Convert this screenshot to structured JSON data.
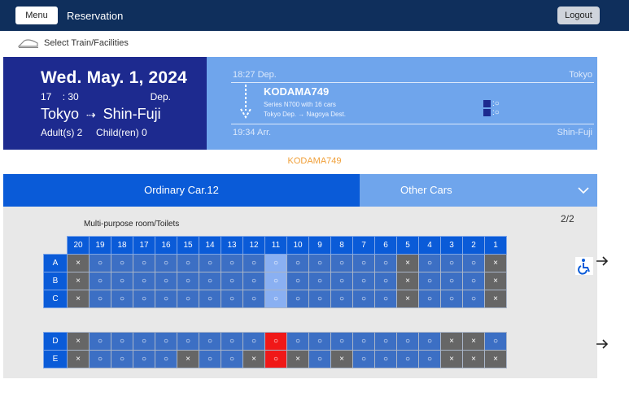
{
  "header": {
    "menu_label": "Menu",
    "title": "Reservation",
    "logout_label": "Logout"
  },
  "breadcrumb": {
    "label": "Select Train/Facilities",
    "icon": "train-icon"
  },
  "journey": {
    "date": "Wed. May. 1, 2024",
    "hour": "17",
    "minute": ": 30",
    "dep_label": "Dep.",
    "from": "Tokyo",
    "to": "Shin-Fuji",
    "adults": "Adult(s) 2",
    "children": "Child(ren) 0"
  },
  "train": {
    "dep_time": "18:27 Dep.",
    "dep_station": "Tokyo",
    "name": "KODAMA749",
    "series": "Series N700 with 16 cars",
    "direction": "Tokyo Dep. → Nagoya Dest.",
    "badge1": ":○",
    "badge2": ":○",
    "arr_time": "19:34 Arr.",
    "arr_station": "Shin-Fuji"
  },
  "selected_train_label": "KODAMA749",
  "tabs": {
    "ordinary": "Ordinary Car.12",
    "other": "Other Cars"
  },
  "seat_map": {
    "page": "2/2",
    "facility_label": "Multi-purpose room/Toilets",
    "columns": [
      "20",
      "19",
      "18",
      "17",
      "16",
      "15",
      "14",
      "13",
      "12",
      "11",
      "10",
      "9",
      "8",
      "7",
      "6",
      "5",
      "4",
      "3",
      "2",
      "1"
    ],
    "rows": [
      {
        "label": "A",
        "cells": [
          "×",
          "○",
          "○",
          "○",
          "○",
          "○",
          "○",
          "○",
          "○",
          "○",
          "○",
          "○",
          "○",
          "○",
          "○",
          "×",
          "○",
          "○",
          "○",
          "×"
        ],
        "states": [
          "na",
          "av",
          "av",
          "av",
          "av",
          "av",
          "av",
          "av",
          "av",
          "hl",
          "av",
          "av",
          "av",
          "av",
          "av",
          "na",
          "av",
          "av",
          "av",
          "na"
        ]
      },
      {
        "label": "B",
        "cells": [
          "×",
          "○",
          "○",
          "○",
          "○",
          "○",
          "○",
          "○",
          "○",
          "○",
          "○",
          "○",
          "○",
          "○",
          "○",
          "×",
          "○",
          "○",
          "○",
          "×"
        ],
        "states": [
          "na",
          "av",
          "av",
          "av",
          "av",
          "av",
          "av",
          "av",
          "av",
          "hl",
          "av",
          "av",
          "av",
          "av",
          "av",
          "na",
          "av",
          "av",
          "av",
          "na"
        ]
      },
      {
        "label": "C",
        "cells": [
          "×",
          "○",
          "○",
          "○",
          "○",
          "○",
          "○",
          "○",
          "○",
          "○",
          "○",
          "○",
          "○",
          "○",
          "○",
          "×",
          "○",
          "○",
          "○",
          "×"
        ],
        "states": [
          "na",
          "av",
          "av",
          "av",
          "av",
          "av",
          "av",
          "av",
          "av",
          "hl",
          "av",
          "av",
          "av",
          "av",
          "av",
          "na",
          "av",
          "av",
          "av",
          "na"
        ]
      },
      {
        "label": "D",
        "cells": [
          "×",
          "○",
          "○",
          "○",
          "○",
          "○",
          "○",
          "○",
          "○",
          "○",
          "○",
          "○",
          "○",
          "○",
          "○",
          "○",
          "○",
          "×",
          "×",
          "○"
        ],
        "states": [
          "na",
          "av",
          "av",
          "av",
          "av",
          "av",
          "av",
          "av",
          "av",
          "sel",
          "av",
          "av",
          "av",
          "av",
          "av",
          "av",
          "av",
          "na",
          "na",
          "av"
        ]
      },
      {
        "label": "E",
        "cells": [
          "×",
          "○",
          "○",
          "○",
          "○",
          "×",
          "○",
          "○",
          "×",
          "○",
          "×",
          "○",
          "×",
          "○",
          "○",
          "○",
          "○",
          "×",
          "×",
          "×"
        ],
        "states": [
          "na",
          "av",
          "av",
          "av",
          "av",
          "na",
          "av",
          "av",
          "na",
          "sel",
          "na",
          "av",
          "na",
          "av",
          "av",
          "av",
          "av",
          "na",
          "na",
          "na"
        ]
      }
    ]
  },
  "colors": {
    "navy": "#0f2f5c",
    "accent": "#0a5bd8",
    "selected": "#f01818",
    "unavailable": "#666666"
  }
}
